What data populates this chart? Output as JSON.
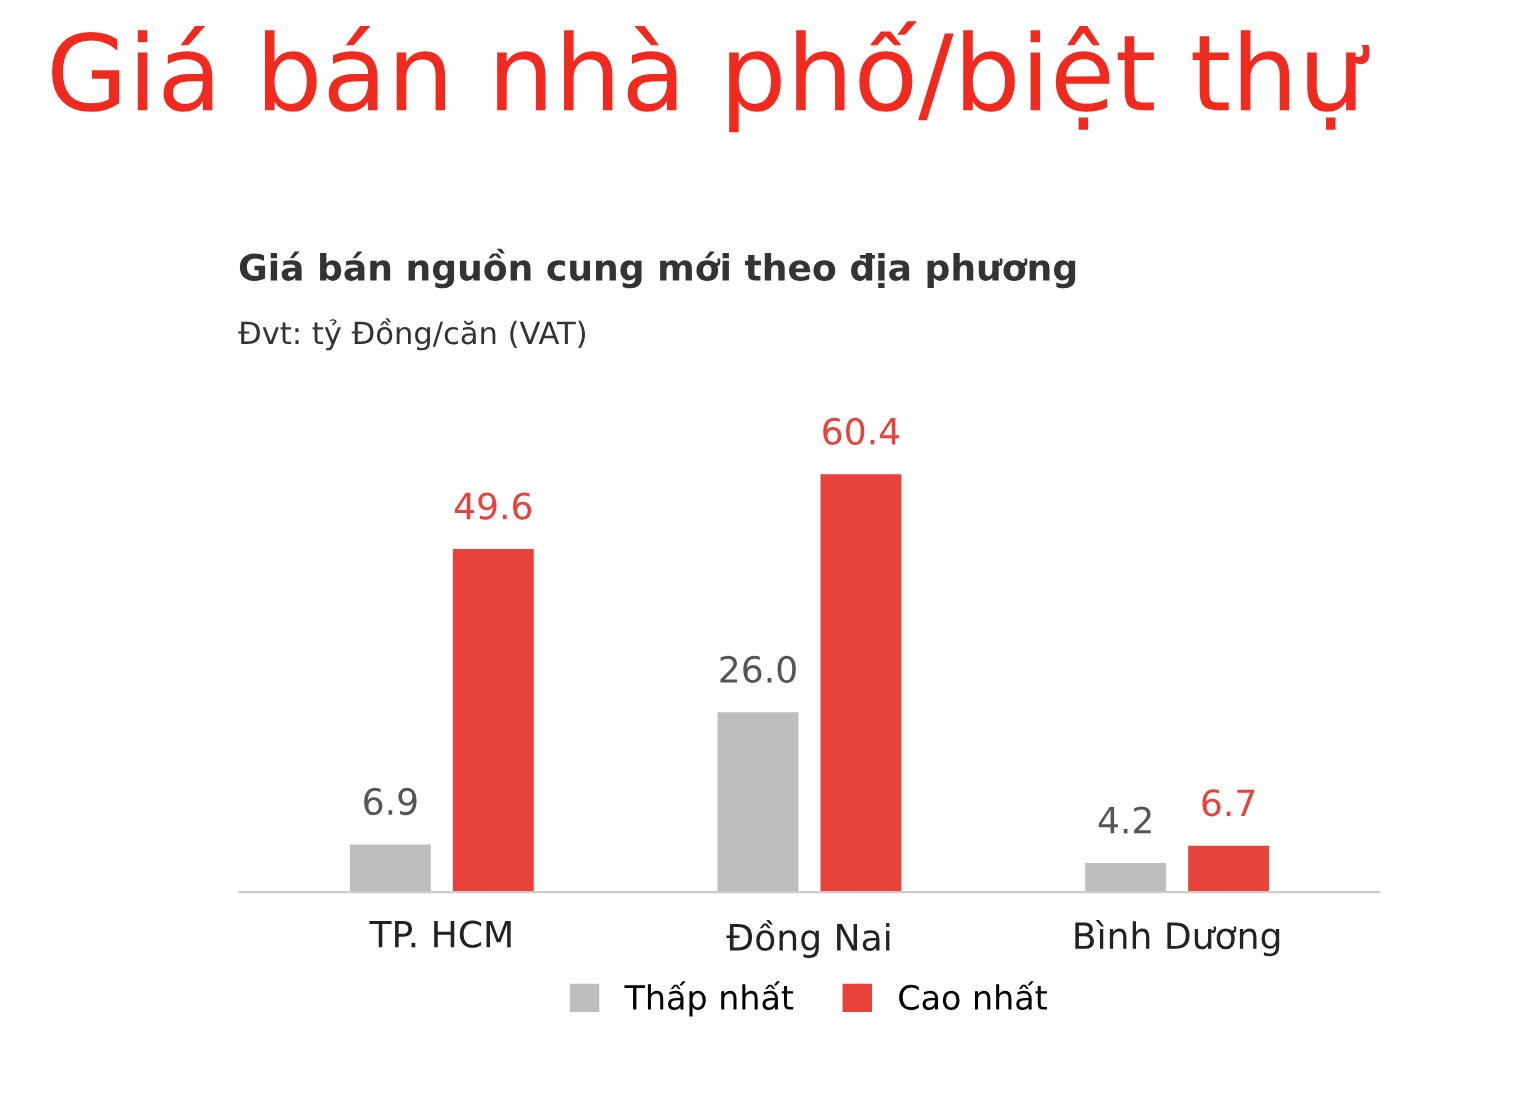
{
  "chart_data": {
    "type": "bar",
    "title": "Giá bán nhà phố/biệt thự",
    "subtitle": "Giá bán nguồn cung mới theo địa phương",
    "annotations": [
      "Đvt: tỷ Đồng/căn (VAT)"
    ],
    "categories": [
      "TP. HCM",
      "Đồng Nai",
      "Bình Dương"
    ],
    "series": [
      {
        "name": "Thấp nhất",
        "color": "#bdbdbd",
        "values": [
          6.9,
          26.0,
          4.2
        ],
        "value_labels": [
          "6.9",
          "26.0",
          "4.2"
        ]
      },
      {
        "name": "Cao nhất",
        "color": "#e8423b",
        "values": [
          49.6,
          60.4,
          6.7
        ],
        "value_labels": [
          "49.6",
          "60.4",
          "6.7"
        ]
      }
    ],
    "legend": "bottom",
    "grid": false
  }
}
